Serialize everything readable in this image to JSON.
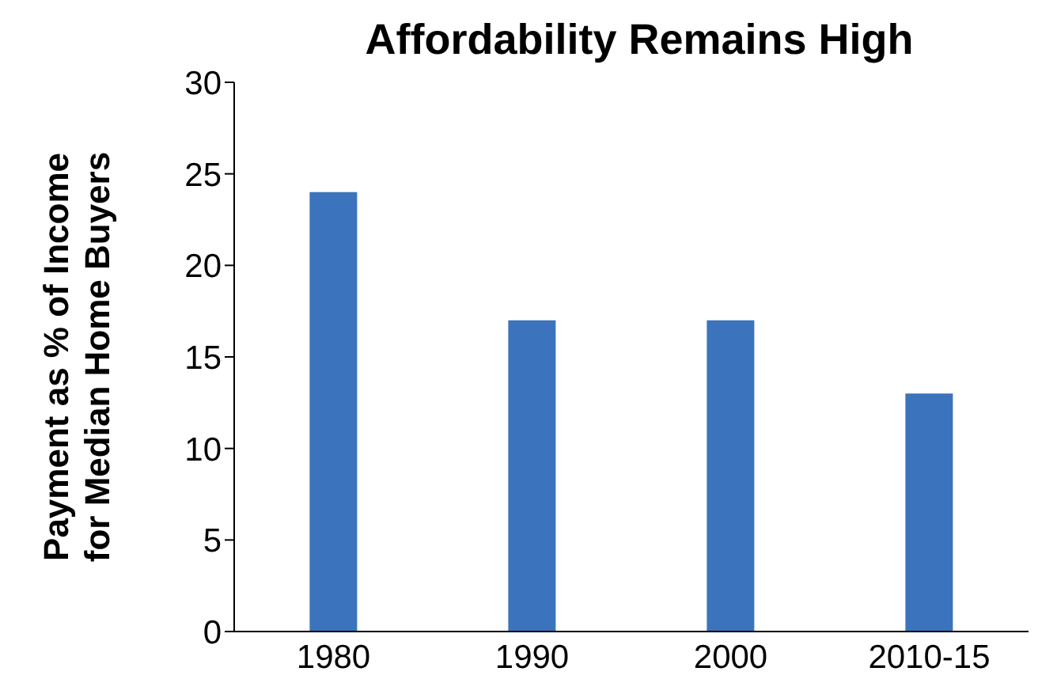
{
  "chart_data": {
    "type": "bar",
    "title": "Affordability Remains High",
    "ylabel": "Payment as % of Income\nfor Median Home Buyers",
    "categories": [
      "1980",
      "1990",
      "2000",
      "2010-15"
    ],
    "values": [
      24,
      17,
      17,
      13
    ],
    "color": "#3b74bc",
    "ylim": [
      0,
      30
    ],
    "yticks": [
      0,
      5,
      10,
      15,
      20,
      25,
      30
    ],
    "grid": false,
    "legend": false
  }
}
